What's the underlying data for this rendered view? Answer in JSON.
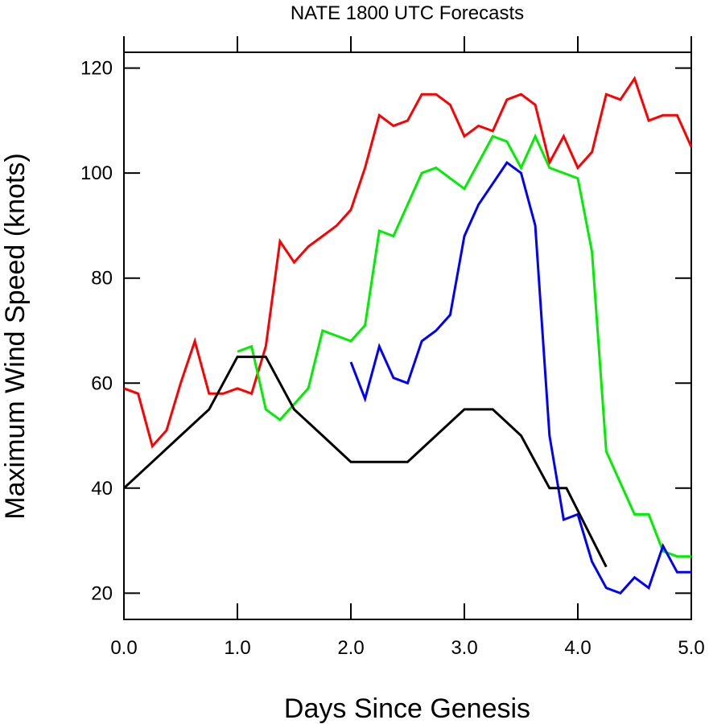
{
  "chart_data": {
    "type": "line",
    "title": "NATE 1800 UTC Forecasts",
    "xlabel": "Days Since Genesis",
    "ylabel": "Maximum Wind Speed (knots)",
    "xlim": [
      0,
      5
    ],
    "ylim": [
      15,
      123
    ],
    "x_ticks": [
      0,
      1,
      2,
      3,
      4,
      5
    ],
    "x_tick_labels": [
      "0.0",
      "1.0",
      "2.0",
      "3.0",
      "4.0",
      "5.0"
    ],
    "y_ticks": [
      20,
      40,
      60,
      80,
      100,
      120
    ],
    "y_tick_labels": [
      "20",
      "40",
      "60",
      "80",
      "100",
      "120"
    ],
    "grid": false,
    "legend": "none",
    "series": [
      {
        "color": "#ff0000",
        "points": [
          [
            0,
            59
          ],
          [
            0.125,
            58
          ],
          [
            0.25,
            48
          ],
          [
            0.375,
            51
          ],
          [
            0.5,
            60
          ],
          [
            0.625,
            68
          ],
          [
            0.75,
            58
          ],
          [
            0.875,
            58
          ],
          [
            1.0,
            59
          ],
          [
            1.125,
            58
          ],
          [
            1.25,
            67
          ],
          [
            1.375,
            87
          ],
          [
            1.5,
            83
          ],
          [
            1.625,
            86
          ],
          [
            1.75,
            88
          ],
          [
            1.875,
            90
          ],
          [
            2.0,
            93
          ],
          [
            2.125,
            101
          ],
          [
            2.25,
            111
          ],
          [
            2.375,
            109
          ],
          [
            2.5,
            110
          ],
          [
            2.625,
            115
          ],
          [
            2.75,
            115
          ],
          [
            2.875,
            113
          ],
          [
            3.0,
            107
          ],
          [
            3.125,
            109
          ],
          [
            3.25,
            108
          ],
          [
            3.375,
            114
          ],
          [
            3.5,
            115
          ],
          [
            3.625,
            113
          ],
          [
            3.75,
            102
          ],
          [
            3.875,
            107
          ],
          [
            4.0,
            101
          ],
          [
            4.125,
            104
          ],
          [
            4.25,
            115
          ],
          [
            4.375,
            114
          ],
          [
            4.5,
            118
          ],
          [
            4.625,
            110
          ],
          [
            4.75,
            111
          ],
          [
            4.875,
            111
          ],
          [
            5.0,
            105
          ]
        ]
      },
      {
        "color": "#00ee00",
        "points": [
          [
            1.0,
            66
          ],
          [
            1.125,
            67
          ],
          [
            1.25,
            55
          ],
          [
            1.375,
            53
          ],
          [
            1.5,
            56
          ],
          [
            1.625,
            59
          ],
          [
            1.75,
            70
          ],
          [
            1.875,
            69
          ],
          [
            2.0,
            68
          ],
          [
            2.125,
            71
          ],
          [
            2.25,
            89
          ],
          [
            2.375,
            88
          ],
          [
            2.5,
            94
          ],
          [
            2.625,
            100
          ],
          [
            2.75,
            101
          ],
          [
            2.875,
            99
          ],
          [
            3.0,
            97
          ],
          [
            3.125,
            102
          ],
          [
            3.25,
            107
          ],
          [
            3.375,
            106
          ],
          [
            3.5,
            101
          ],
          [
            3.625,
            107
          ],
          [
            3.75,
            101
          ],
          [
            3.875,
            100
          ],
          [
            4.0,
            99
          ],
          [
            4.125,
            85
          ],
          [
            4.25,
            47
          ],
          [
            4.375,
            41
          ],
          [
            4.5,
            35
          ],
          [
            4.625,
            35
          ],
          [
            4.75,
            28
          ],
          [
            4.875,
            27
          ],
          [
            5.0,
            27
          ]
        ]
      },
      {
        "color": "#0000ff",
        "points": [
          [
            2.0,
            64
          ],
          [
            2.125,
            57
          ],
          [
            2.25,
            67
          ],
          [
            2.375,
            61
          ],
          [
            2.5,
            60
          ],
          [
            2.625,
            68
          ],
          [
            2.75,
            70
          ],
          [
            2.875,
            73
          ],
          [
            3.0,
            88
          ],
          [
            3.125,
            94
          ],
          [
            3.25,
            98
          ],
          [
            3.375,
            102
          ],
          [
            3.5,
            100
          ],
          [
            3.625,
            90
          ],
          [
            3.75,
            50
          ],
          [
            3.875,
            34
          ],
          [
            4.0,
            35
          ],
          [
            4.125,
            26
          ],
          [
            4.25,
            21
          ],
          [
            4.375,
            20
          ],
          [
            4.5,
            23
          ],
          [
            4.625,
            21
          ],
          [
            4.75,
            29
          ],
          [
            4.875,
            24
          ],
          [
            5.0,
            24
          ]
        ]
      },
      {
        "color": "#000000",
        "points": [
          [
            0,
            40
          ],
          [
            0.25,
            45
          ],
          [
            0.5,
            50
          ],
          [
            0.75,
            55
          ],
          [
            1.0,
            65
          ],
          [
            1.25,
            65
          ],
          [
            1.5,
            55
          ],
          [
            1.75,
            50
          ],
          [
            2.0,
            45
          ],
          [
            2.25,
            45
          ],
          [
            2.5,
            45
          ],
          [
            2.75,
            50
          ],
          [
            3.0,
            55
          ],
          [
            3.25,
            55
          ],
          [
            3.5,
            50
          ],
          [
            3.75,
            40
          ],
          [
            3.9,
            40
          ],
          [
            4.25,
            25
          ]
        ]
      }
    ]
  }
}
